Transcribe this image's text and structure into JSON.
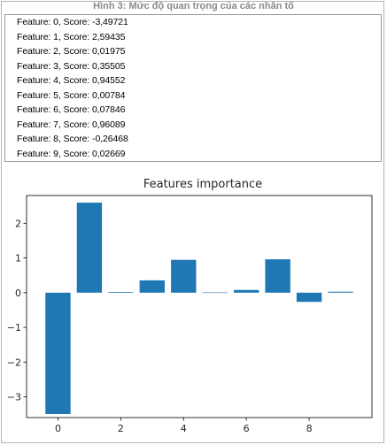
{
  "caption": "Hình 3: Mức độ quan trọng của các nhân tố",
  "output_lines": [
    "Feature: 0, Score: -3,49721",
    "Feature: 1, Score: 2,59435",
    "Feature: 2, Score: 0,01975",
    "Feature: 3, Score: 0,35505",
    "Feature: 4, Score: 0,94552",
    "Feature: 5, Score: 0,00784",
    "Feature: 6, Score: 0,07846",
    "Feature: 7, Score: 0,96089",
    "Feature: 8, Score: -0,26468",
    "Feature: 9, Score: 0,02669"
  ],
  "chart_data": {
    "type": "bar",
    "title": "Features importance",
    "xlabel": "",
    "ylabel": "",
    "x": [
      0,
      1,
      2,
      3,
      4,
      5,
      6,
      7,
      8,
      9
    ],
    "values": [
      -3.49721,
      2.59435,
      0.01975,
      0.35505,
      0.94552,
      0.00784,
      0.07846,
      0.96089,
      -0.26468,
      0.02669
    ],
    "xlim": [
      -1,
      10
    ],
    "ylim": [
      -3.6,
      2.8
    ],
    "xticks": [
      0,
      2,
      4,
      6,
      8
    ],
    "xtick_labels": [
      "0",
      "2",
      "4",
      "6",
      "8"
    ],
    "yticks": [
      -3,
      -2,
      -1,
      0,
      1,
      2
    ],
    "ytick_labels": [
      "−3",
      "−2",
      "−1",
      "0",
      "1",
      "2"
    ],
    "grid": false,
    "bar_color": "#1f77b4"
  }
}
